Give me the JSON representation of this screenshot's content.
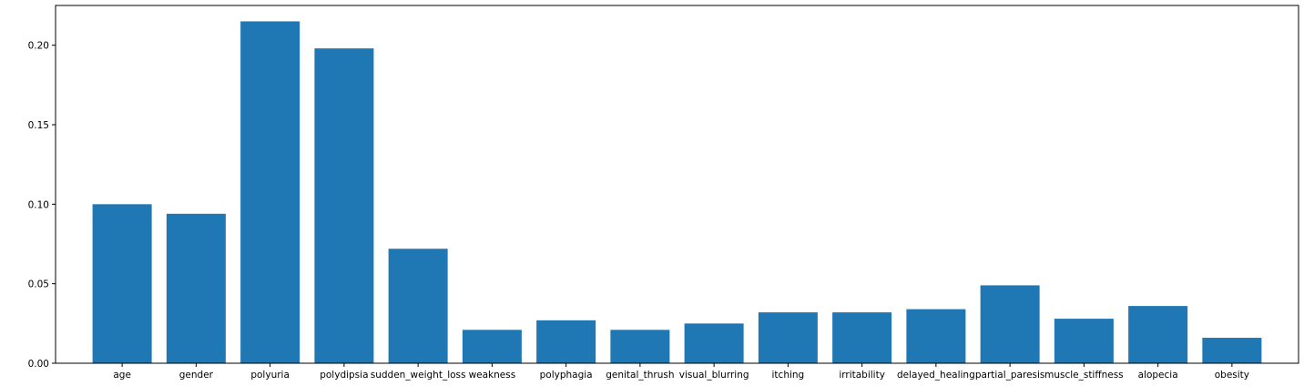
{
  "chart_data": {
    "type": "bar",
    "title": "",
    "xlabel": "",
    "ylabel": "",
    "categories": [
      "age",
      "gender",
      "polyuria",
      "polydipsia",
      "sudden_weight_loss",
      "weakness",
      "polyphagia",
      "genital_thrush",
      "visual_blurring",
      "itching",
      "irritability",
      "delayed_healing",
      "partial_paresis",
      "muscle_stiffness",
      "alopecia",
      "obesity"
    ],
    "values": [
      0.1,
      0.094,
      0.215,
      0.198,
      0.072,
      0.021,
      0.027,
      0.021,
      0.025,
      0.032,
      0.032,
      0.034,
      0.049,
      0.028,
      0.036,
      0.016
    ],
    "ylim": [
      0,
      0.225
    ],
    "yticks": [
      0.0,
      0.05,
      0.1,
      0.15,
      0.2
    ],
    "ytick_labels": [
      "0.00",
      "0.05",
      "0.10",
      "0.15",
      "0.20"
    ],
    "grid": false,
    "legend": "none",
    "bar_color": "#1f77b4",
    "axis_color": "#000000"
  }
}
